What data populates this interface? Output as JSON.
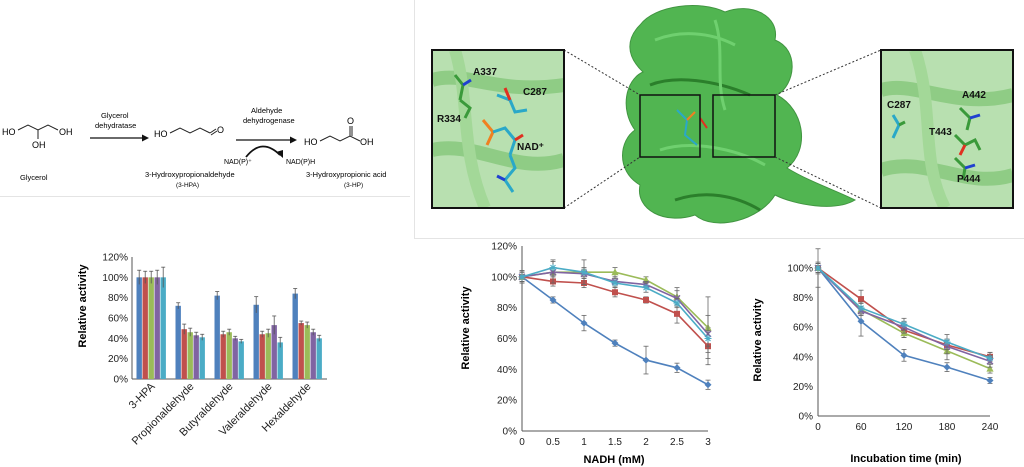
{
  "pathway": {
    "glycerol": "Glycerol",
    "enzyme1_line1": "Glycerol",
    "enzyme1_line2": "dehydratase",
    "hpa_name": "3-Hydroxypropionaldehyde",
    "hpa_abbr": "(3-HPA)",
    "enzyme2_line1": "Aldehyde",
    "enzyme2_line2": "dehydrogenase",
    "cofactor_in": "NAD(P)⁺",
    "cofactor_out": "NAD(P)H",
    "hp_name": "3-Hydroxypropionic acid",
    "hp_abbr": "(3-HP)",
    "ho": "HO",
    "oh": "OH",
    "o": "O"
  },
  "structure": {
    "colors": {
      "protein": "#3fae3f",
      "ligand_c": "#2aa8c8",
      "o": "#e03020",
      "p": "#f08020",
      "n": "#2040d0"
    },
    "left_inset_labels": [
      "A337",
      "C287",
      "R334",
      "NAD⁺"
    ],
    "right_inset_labels": [
      "C287",
      "A442",
      "T443",
      "P444"
    ]
  },
  "colors": {
    "blue": "#4f81bd",
    "red": "#c0504d",
    "green": "#9bbb59",
    "purple": "#8064a2",
    "cyan": "#4bacc6"
  },
  "chart_data": [
    {
      "type": "bar",
      "title": "",
      "xlabel": "",
      "ylabel": "Relative activity",
      "ylim": [
        0,
        120
      ],
      "yticks": [
        "0%",
        "20%",
        "40%",
        "60%",
        "80%",
        "100%",
        "120%"
      ],
      "categories": [
        "3-HPA",
        "Propionaldehyde",
        "Butyraldehyde",
        "Valeraldehyde",
        "Hexaldehyde"
      ],
      "series": [
        {
          "values": [
            100,
            72,
            82,
            73,
            84
          ],
          "errors": [
            7,
            3,
            4,
            8,
            5
          ]
        },
        {
          "values": [
            100,
            49,
            44,
            44,
            55
          ],
          "errors": [
            6,
            5,
            3,
            3,
            2
          ]
        },
        {
          "values": [
            100,
            46,
            46,
            45,
            53
          ],
          "errors": [
            6,
            4,
            3,
            4,
            3
          ]
        },
        {
          "values": [
            100,
            43,
            40,
            53,
            46
          ],
          "errors": [
            7,
            3,
            2,
            9,
            3
          ]
        },
        {
          "values": [
            100,
            41,
            37,
            36,
            40
          ],
          "errors": [
            10,
            3,
            2,
            5,
            3
          ]
        }
      ]
    },
    {
      "type": "line",
      "title": "",
      "xlabel": "NADH (mM)",
      "ylabel": "Relative activity",
      "xlim": [
        0,
        3
      ],
      "ylim": [
        0,
        120
      ],
      "xticks": [
        "0",
        "0.5",
        "1",
        "1.5",
        "2",
        "2.5",
        "3"
      ],
      "yticks": [
        "0%",
        "20%",
        "40%",
        "60%",
        "80%",
        "100%",
        "120%"
      ],
      "x": [
        0,
        0.5,
        1,
        1.5,
        2,
        2.5,
        3
      ],
      "series": [
        {
          "values": [
            100,
            85,
            70,
            57,
            46,
            41,
            30
          ],
          "errors": [
            4,
            2,
            5,
            2,
            9,
            3,
            3
          ],
          "marker": "diamond"
        },
        {
          "values": [
            100,
            97,
            96,
            90,
            85,
            76,
            55
          ],
          "errors": [
            3,
            3,
            3,
            3,
            2,
            6,
            12
          ],
          "marker": "square"
        },
        {
          "values": [
            100,
            103,
            103,
            103,
            98,
            87,
            67
          ],
          "errors": [
            4,
            3,
            3,
            3,
            2,
            6,
            20
          ],
          "marker": "triangle"
        },
        {
          "values": [
            100,
            103,
            102,
            97,
            95,
            86,
            63
          ],
          "errors": [
            3,
            7,
            3,
            3,
            2,
            5,
            12
          ],
          "marker": "x"
        },
        {
          "values": [
            100,
            106,
            103,
            96,
            93,
            83,
            60
          ],
          "errors": [
            3,
            5,
            8,
            3,
            3,
            3,
            5
          ],
          "marker": "star"
        }
      ]
    },
    {
      "type": "line",
      "title": "",
      "xlabel": "Incubation time (min)",
      "ylabel": "Relative activity",
      "xlim": [
        0,
        240
      ],
      "ylim": [
        0,
        100
      ],
      "xticks": [
        "0",
        "60",
        "120",
        "180",
        "240"
      ],
      "yticks": [
        "0%",
        "20%",
        "40%",
        "60%",
        "80%",
        "100%"
      ],
      "x": [
        0,
        60,
        120,
        180,
        240
      ],
      "series": [
        {
          "values": [
            100,
            64,
            41,
            33,
            24
          ],
          "errors": [
            13,
            10,
            4,
            3,
            2
          ],
          "marker": "diamond"
        },
        {
          "values": [
            100,
            79,
            58,
            48,
            40
          ],
          "errors": [
            3,
            6,
            5,
            3,
            3
          ],
          "marker": "square"
        },
        {
          "values": [
            100,
            72,
            56,
            44,
            32
          ],
          "errors": [
            3,
            4,
            3,
            6,
            3
          ],
          "marker": "triangle"
        },
        {
          "values": [
            100,
            71,
            60,
            47,
            37
          ],
          "errors": [
            3,
            3,
            4,
            5,
            4
          ],
          "marker": "x"
        },
        {
          "values": [
            100,
            73,
            62,
            50,
            39
          ],
          "errors": [
            4,
            4,
            4,
            5,
            4
          ],
          "marker": "star"
        }
      ]
    }
  ]
}
